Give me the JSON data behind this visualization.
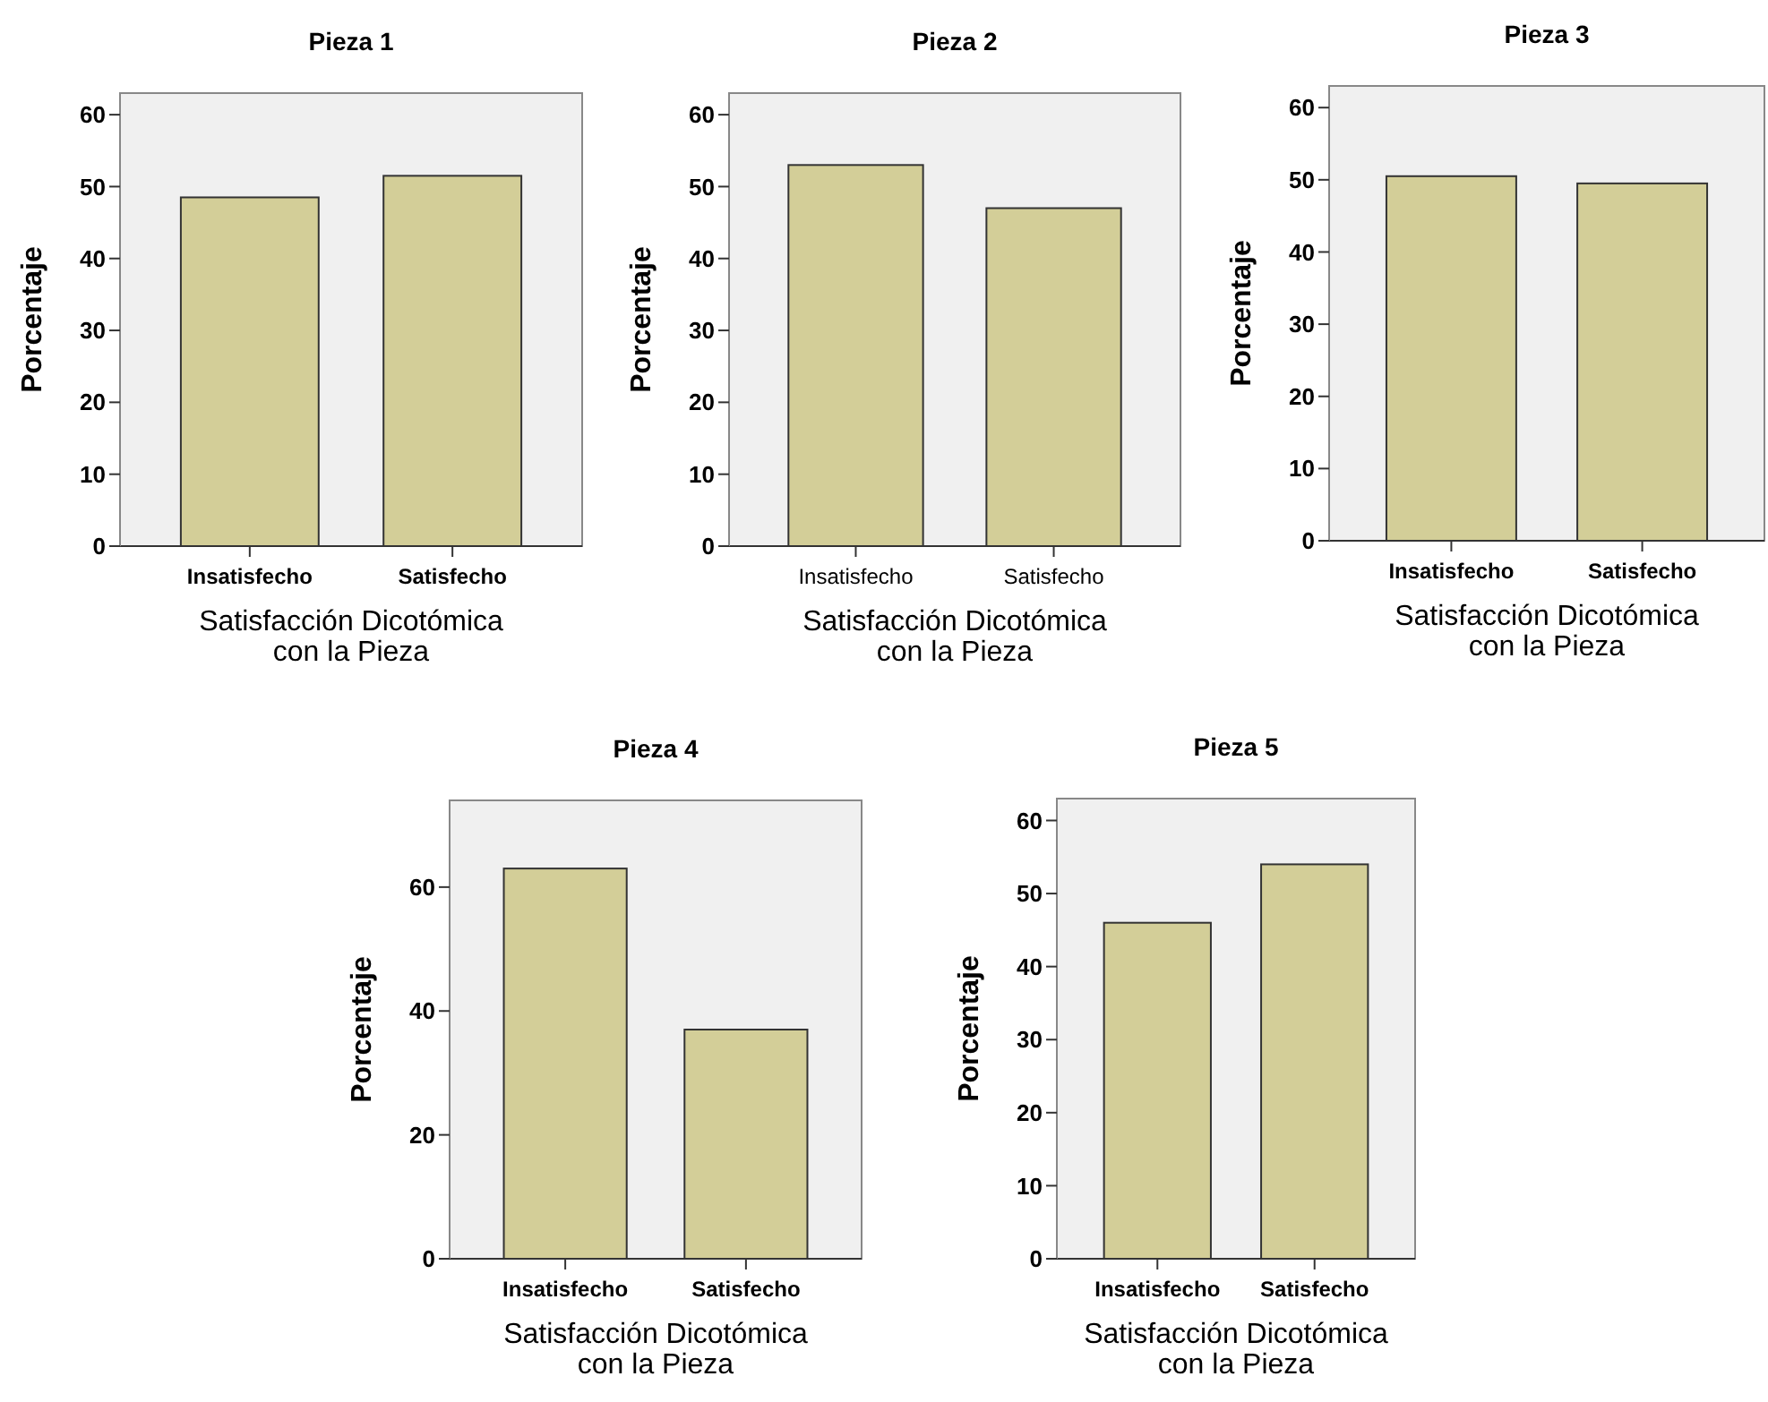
{
  "chart_data": [
    {
      "type": "bar",
      "title": "Pieza 1",
      "xlabel": "Satisfacción Dicotómica\ncon la Pieza",
      "ylabel": "Porcentaje",
      "categories": [
        "Insatisfecho",
        "Satisfecho"
      ],
      "values": [
        48.5,
        51.5
      ],
      "color": "#d3ce98",
      "ylim": [
        0,
        63
      ],
      "yticks": [
        0,
        10,
        20,
        30,
        40,
        50,
        60
      ]
    },
    {
      "type": "bar",
      "title": "Pieza 2",
      "xlabel": "Satisfacción Dicotómica\ncon la Pieza",
      "ylabel": "Porcentaje",
      "categories": [
        "Insatisfecho",
        "Satisfecho"
      ],
      "values": [
        53,
        47
      ],
      "color": "#d3ce98",
      "ylim": [
        0,
        63
      ],
      "yticks": [
        0,
        10,
        20,
        30,
        40,
        50,
        60
      ]
    },
    {
      "type": "bar",
      "title": "Pieza 3",
      "xlabel": "Satisfacción Dicotómica\ncon la Pieza",
      "ylabel": "Porcentaje",
      "categories": [
        "Insatisfecho",
        "Satisfecho"
      ],
      "values": [
        50.5,
        49.5
      ],
      "color": "#d3ce98",
      "ylim": [
        0,
        63
      ],
      "yticks": [
        0,
        10,
        20,
        30,
        40,
        50,
        60
      ]
    },
    {
      "type": "bar",
      "title": "Pieza 4",
      "xlabel": "Satisfacción Dicotómica\ncon la Pieza",
      "ylabel": "Porcentaje",
      "categories": [
        "Insatisfecho",
        "Satisfecho"
      ],
      "values": [
        63,
        37
      ],
      "color": "#d3ce98",
      "ylim": [
        0,
        74
      ],
      "yticks": [
        0,
        20,
        40,
        60
      ]
    },
    {
      "type": "bar",
      "title": "Pieza 5",
      "xlabel": "Satisfacción Dicotómica\ncon la Pieza",
      "ylabel": "Porcentaje",
      "categories": [
        "Insatisfecho",
        "Satisfecho"
      ],
      "values": [
        46,
        54
      ],
      "color": "#d3ce98",
      "ylim": [
        0,
        63
      ],
      "yticks": [
        0,
        10,
        20,
        30,
        40,
        50,
        60
      ]
    }
  ]
}
